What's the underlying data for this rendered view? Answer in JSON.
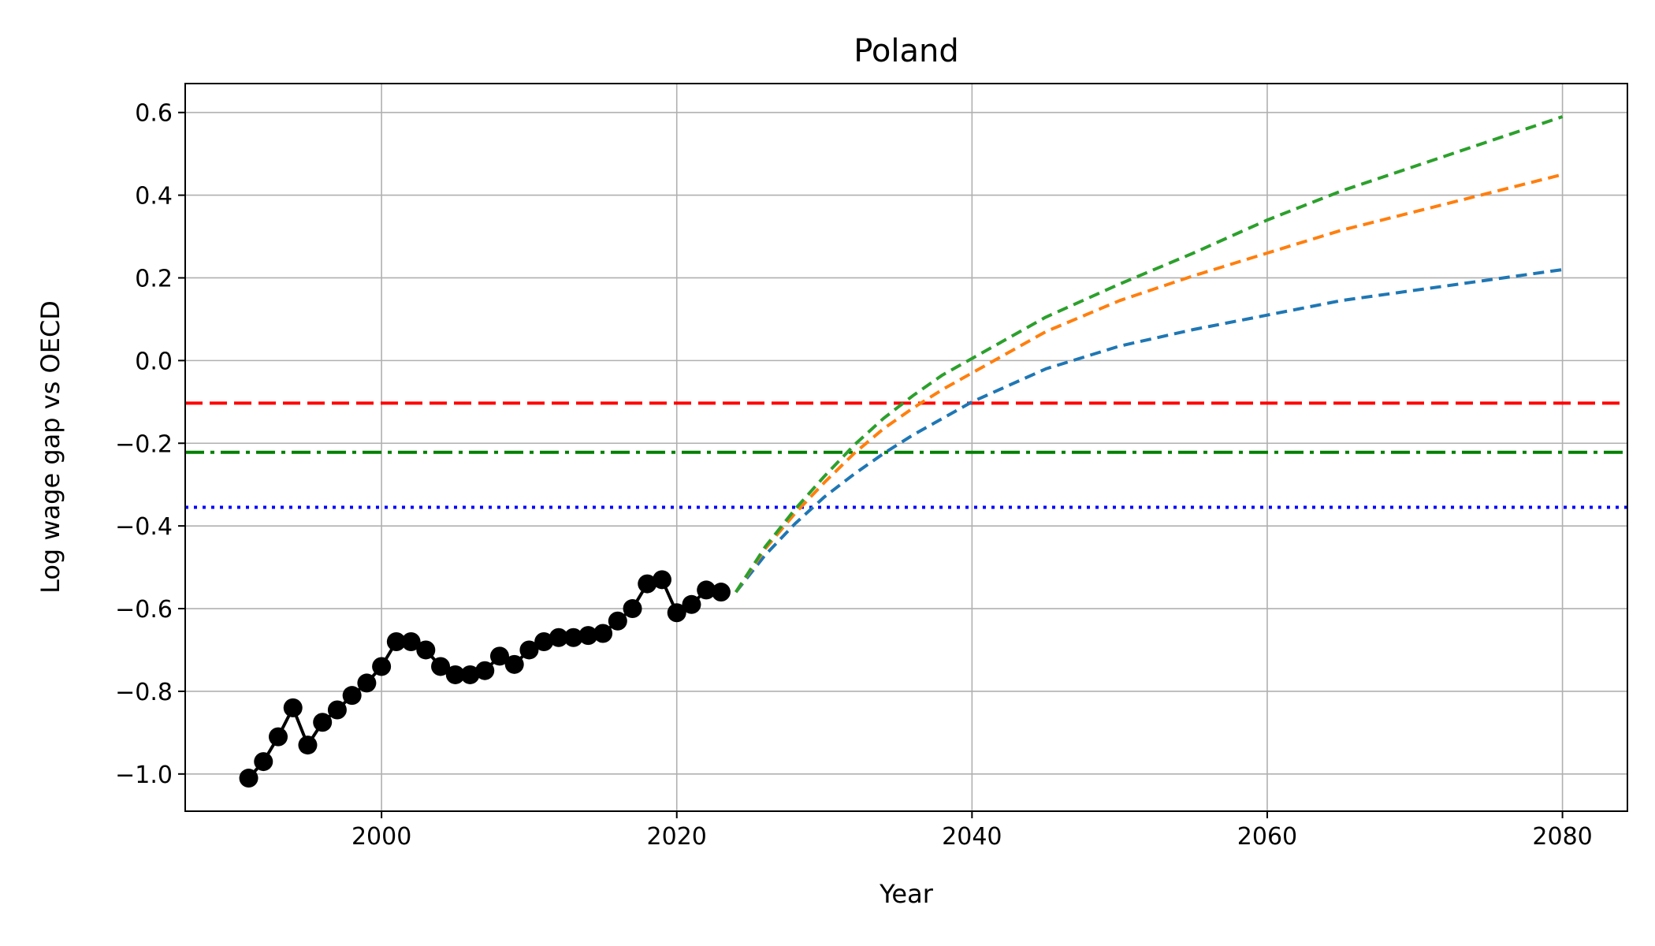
{
  "chart_data": {
    "type": "line",
    "title": "Poland",
    "xlabel": "Year",
    "ylabel": "Log wage gap vs OECD",
    "xlim": [
      1986.7,
      2084.4
    ],
    "ylim": [
      -1.09,
      0.67
    ],
    "grid": true,
    "xticks": [
      2000,
      2020,
      2040,
      2060,
      2080
    ],
    "yticks": [
      0.6,
      0.4,
      0.2,
      0.0,
      -0.2,
      -0.4,
      -0.6,
      -0.8,
      -1.0
    ],
    "ytick_labels": [
      "0.6",
      "0.4",
      "0.2",
      "0.0",
      "−0.2",
      "−0.4",
      "−0.6",
      "−0.8",
      "−1.0"
    ],
    "reference_lines": [
      {
        "y": -0.103,
        "color": "#ff0000",
        "style": "dashed"
      },
      {
        "y": -0.222,
        "color": "#008000",
        "style": "dashdot"
      },
      {
        "y": -0.355,
        "color": "#0000ff",
        "style": "dotted"
      }
    ],
    "series": [
      {
        "kind": "historical",
        "color": "#000000",
        "marker": "circle",
        "x": [
          1991,
          1992,
          1993,
          1994,
          1995,
          1996,
          1997,
          1998,
          1999,
          2000,
          2001,
          2002,
          2003,
          2004,
          2005,
          2006,
          2007,
          2008,
          2009,
          2010,
          2011,
          2012,
          2013,
          2014,
          2015,
          2016,
          2017,
          2018,
          2019,
          2020,
          2021,
          2022,
          2023
        ],
        "y": [
          -1.01,
          -0.97,
          -0.91,
          -0.84,
          -0.93,
          -0.875,
          -0.845,
          -0.81,
          -0.78,
          -0.74,
          -0.68,
          -0.68,
          -0.7,
          -0.74,
          -0.76,
          -0.76,
          -0.75,
          -0.715,
          -0.735,
          -0.7,
          -0.68,
          -0.67,
          -0.67,
          -0.665,
          -0.66,
          -0.63,
          -0.6,
          -0.54,
          -0.53,
          -0.61,
          -0.59,
          -0.555,
          -0.56
        ]
      },
      {
        "kind": "projection",
        "color": "#1f77b4",
        "style": "dashed",
        "x": [
          2024,
          2026,
          2028,
          2030,
          2032,
          2034,
          2036,
          2038,
          2040,
          2045,
          2050,
          2055,
          2060,
          2065,
          2070,
          2075,
          2080
        ],
        "y": [
          -0.56,
          -0.47,
          -0.395,
          -0.33,
          -0.275,
          -0.225,
          -0.18,
          -0.14,
          -0.1,
          -0.02,
          0.035,
          0.075,
          0.11,
          0.145,
          0.17,
          0.195,
          0.22
        ]
      },
      {
        "kind": "projection",
        "color": "#ff7f0e",
        "style": "dashed",
        "x": [
          2024,
          2026,
          2028,
          2030,
          2032,
          2034,
          2036,
          2038,
          2040,
          2045,
          2050,
          2055,
          2060,
          2065,
          2070,
          2075,
          2080
        ],
        "y": [
          -0.56,
          -0.455,
          -0.37,
          -0.295,
          -0.225,
          -0.165,
          -0.115,
          -0.07,
          -0.03,
          0.07,
          0.145,
          0.205,
          0.26,
          0.315,
          0.36,
          0.405,
          0.45
        ]
      },
      {
        "kind": "projection",
        "color": "#2ca02c",
        "style": "dashed",
        "x": [
          2024,
          2026,
          2028,
          2030,
          2032,
          2034,
          2036,
          2038,
          2040,
          2045,
          2050,
          2055,
          2060,
          2065,
          2070,
          2075,
          2080
        ],
        "y": [
          -0.56,
          -0.45,
          -0.36,
          -0.28,
          -0.205,
          -0.14,
          -0.085,
          -0.035,
          0.005,
          0.105,
          0.185,
          0.26,
          0.34,
          0.41,
          0.47,
          0.53,
          0.59
        ]
      }
    ]
  }
}
